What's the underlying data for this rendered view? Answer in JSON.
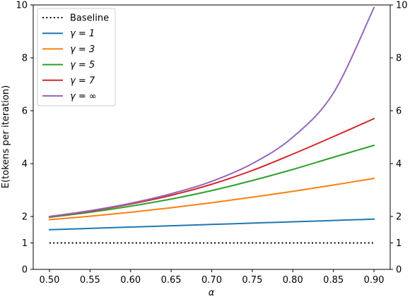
{
  "chart_data": {
    "type": "line",
    "xlabel": "α",
    "ylabel": "E(tokens per iteration)",
    "xlim": [
      0.48,
      0.92
    ],
    "ylim": [
      0,
      10
    ],
    "xticks": [
      "0.50",
      "0.55",
      "0.60",
      "0.65",
      "0.70",
      "0.75",
      "0.80",
      "0.85",
      "0.90"
    ],
    "yticks_left": [
      "0",
      "1",
      "2",
      "4",
      "6",
      "8",
      "10"
    ],
    "yticks_right": [
      "0",
      "1",
      "2",
      "4",
      "6",
      "8",
      "10"
    ],
    "grid": false,
    "legend_position": "top-left",
    "x": [
      0.5,
      0.55,
      0.6,
      0.65,
      0.7,
      0.75,
      0.8,
      0.85,
      0.9
    ],
    "series": [
      {
        "name": "Baseline",
        "color": "#000000",
        "style": "dotted",
        "values": [
          1,
          1,
          1,
          1,
          1,
          1,
          1,
          1,
          1
        ]
      },
      {
        "name": "γ = 1",
        "color": "#1f77b4",
        "style": "solid",
        "values": [
          1.5,
          1.55,
          1.6,
          1.65,
          1.7,
          1.75,
          1.8,
          1.85,
          1.9
        ]
      },
      {
        "name": "γ = 3",
        "color": "#ff7f0e",
        "style": "solid",
        "values": [
          1.88,
          2.01,
          2.16,
          2.33,
          2.52,
          2.73,
          2.95,
          3.19,
          3.44
        ]
      },
      {
        "name": "γ = 5",
        "color": "#2ca02c",
        "style": "solid",
        "values": [
          1.97,
          2.16,
          2.39,
          2.66,
          2.98,
          3.36,
          3.78,
          4.24,
          4.69
        ]
      },
      {
        "name": "γ = 7",
        "color": "#d62728",
        "style": "solid",
        "values": [
          1.99,
          2.2,
          2.47,
          2.8,
          3.22,
          3.74,
          4.36,
          5.02,
          5.7
        ]
      },
      {
        "name": "γ = ∞",
        "color": "#9467bd",
        "style": "solid",
        "values": [
          2.0,
          2.22,
          2.5,
          2.86,
          3.33,
          4.0,
          5.0,
          6.67,
          9.9
        ]
      }
    ]
  }
}
